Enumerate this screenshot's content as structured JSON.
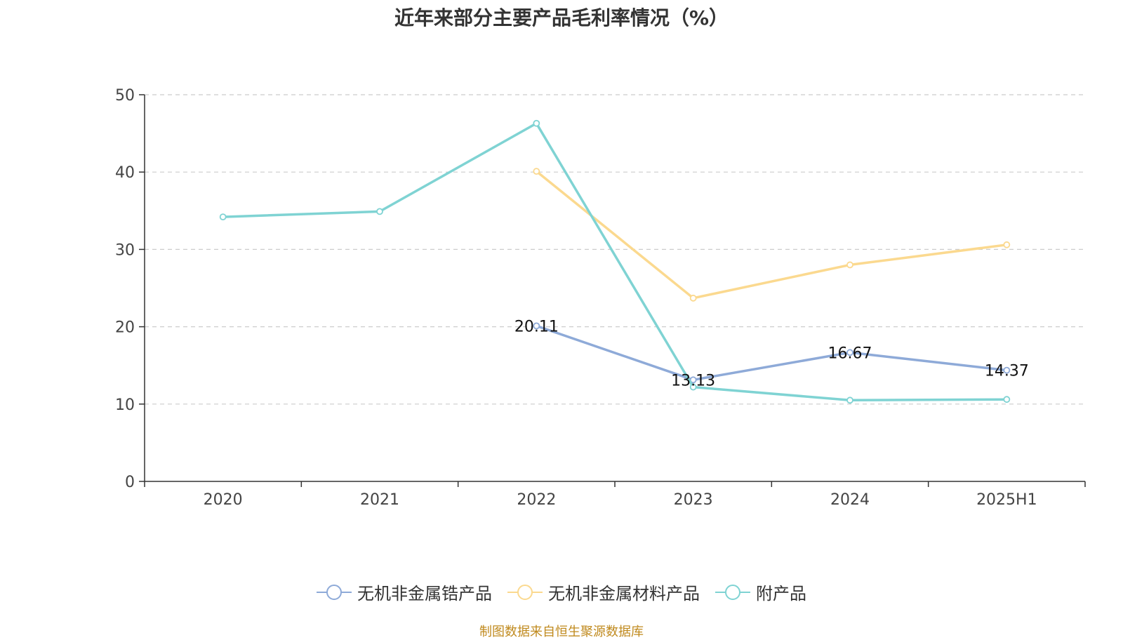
{
  "chart_data": {
    "type": "line",
    "title": "近年来部分主要产品毛利率情况（%）",
    "categories": [
      "2020",
      "2021",
      "2022",
      "2023",
      "2024",
      "2025H1"
    ],
    "ylim": [
      0,
      50
    ],
    "yticks": [
      0,
      10,
      20,
      30,
      40,
      50
    ],
    "grid": true,
    "legend_position": "bottom",
    "series": [
      {
        "name": "无机非金属锆产品",
        "color": "#8eaad8",
        "values": [
          null,
          null,
          20.11,
          13.13,
          16.67,
          14.37
        ],
        "show_labels": true
      },
      {
        "name": "无机非金属材料产品",
        "color": "#fbd98f",
        "values": [
          null,
          null,
          40.1,
          23.7,
          28.0,
          30.6
        ],
        "show_labels": false
      },
      {
        "name": "附产品",
        "color": "#7fd3d3",
        "values": [
          34.2,
          34.9,
          46.3,
          12.2,
          10.5,
          10.6
        ],
        "show_labels": false
      }
    ]
  },
  "source": "制图数据来自恒生聚源数据库"
}
